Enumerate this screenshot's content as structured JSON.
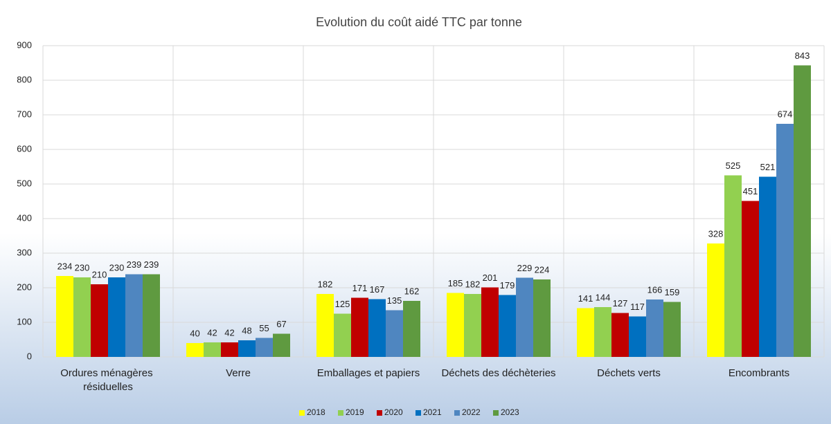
{
  "chart_data": {
    "type": "bar",
    "title": "Evolution du coût aidé TTC par tonne",
    "categories": [
      "Ordures ménagères résiduelles",
      "Verre",
      "Emballages et papiers",
      "Déchets des déchèteries",
      "Déchets verts",
      "Encombrants"
    ],
    "series": [
      {
        "name": "2018",
        "color": "#ffff00",
        "values": [
          234,
          40,
          182,
          185,
          141,
          328
        ]
      },
      {
        "name": "2019",
        "color": "#92d050",
        "values": [
          230,
          42,
          125,
          182,
          144,
          525
        ]
      },
      {
        "name": "2020",
        "color": "#c00000",
        "values": [
          210,
          42,
          171,
          201,
          127,
          451
        ]
      },
      {
        "name": "2021",
        "color": "#0070c0",
        "values": [
          230,
          48,
          167,
          179,
          117,
          521
        ]
      },
      {
        "name": "2022",
        "color": "#4f86c0",
        "values": [
          239,
          55,
          135,
          229,
          166,
          674
        ]
      },
      {
        "name": "2023",
        "color": "#5f9a40",
        "values": [
          239,
          67,
          162,
          224,
          159,
          843
        ]
      }
    ],
    "ylim": [
      0,
      900
    ],
    "yticks": [
      0,
      100,
      200,
      300,
      400,
      500,
      600,
      700,
      800,
      900
    ],
    "grid": true,
    "legend": "bottom"
  }
}
